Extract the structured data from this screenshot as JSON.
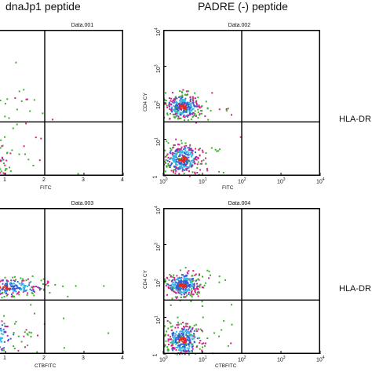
{
  "column_titles": [
    "dnaJp1 peptide",
    "PADRE (-) peptide"
  ],
  "row_labels": [
    "HLA-DR",
    "HLA-DR"
  ],
  "colors": {
    "frame": "#000000",
    "green": "#3fae2f",
    "magenta": "#d81e87",
    "blue": "#2f5fd8",
    "red": "#e0281f",
    "cyan": "#36b8e0"
  },
  "chart_data": [
    {
      "type": "scatter",
      "title": "Data.001",
      "xlabel": "FITC",
      "ylabel": "",
      "xscale": "log",
      "yscale": "log",
      "xlim": [
        1,
        10000
      ],
      "ylim": [
        1,
        10000
      ],
      "x_ticks": [
        "1",
        "2",
        "3",
        "4"
      ],
      "y_ticks": [],
      "quadrant_gate": {
        "x": 100,
        "y": 30
      },
      "populations": [
        {
          "x": 1.5,
          "y": 100,
          "n": 200,
          "sx": 0.35,
          "sy": 0.3
        },
        {
          "x": 2,
          "y": 3,
          "n": 260,
          "sx": 0.35,
          "sy": 0.3
        }
      ]
    },
    {
      "type": "scatter",
      "title": "Data.002",
      "xlabel": "FITC",
      "ylabel": "CD4 CY",
      "xscale": "log",
      "yscale": "log",
      "xlim": [
        1,
        10000
      ],
      "ylim": [
        1,
        10000
      ],
      "x_ticks": [
        "10",
        "10",
        "10",
        "10",
        "10"
      ],
      "x_tick_exp": [
        "0",
        "1",
        "2",
        "3",
        "4"
      ],
      "y_ticks": [
        "1",
        "10",
        "10",
        "10",
        "10"
      ],
      "y_tick_exp": [
        "",
        "1",
        "2",
        "3",
        "4"
      ],
      "quadrant_gate": {
        "x": 100,
        "y": 30
      },
      "populations": [
        {
          "x": 3,
          "y": 80,
          "n": 320,
          "sx": 0.22,
          "sy": 0.16
        },
        {
          "x": 3,
          "y": 3,
          "n": 320,
          "sx": 0.22,
          "sy": 0.2
        }
      ]
    },
    {
      "type": "scatter",
      "title": "Data.003",
      "xlabel": "CTBFITC",
      "ylabel": "",
      "xscale": "log",
      "yscale": "log",
      "xlim": [
        1,
        10000
      ],
      "ylim": [
        1,
        10000
      ],
      "x_ticks": [
        "1",
        "2",
        "3",
        "4"
      ],
      "y_ticks": [],
      "quadrant_gate": {
        "x": 100,
        "y": 30
      },
      "populations": [
        {
          "x": 8,
          "y": 70,
          "n": 320,
          "sx": 0.55,
          "sy": 0.12
        },
        {
          "x": 3,
          "y": 3,
          "n": 260,
          "sx": 0.4,
          "sy": 0.25
        }
      ]
    },
    {
      "type": "scatter",
      "title": "Data.004",
      "xlabel": "CTBFITC",
      "ylabel": "CD4 CY",
      "xscale": "log",
      "yscale": "log",
      "xlim": [
        1,
        10000
      ],
      "ylim": [
        1,
        10000
      ],
      "x_ticks": [
        "10",
        "10",
        "10",
        "10",
        "10"
      ],
      "x_tick_exp": [
        "0",
        "1",
        "2",
        "3",
        "4"
      ],
      "y_ticks": [
        "1",
        "10",
        "10",
        "10",
        "10"
      ],
      "y_tick_exp": [
        "",
        "1",
        "2",
        "3",
        "4"
      ],
      "quadrant_gate": {
        "x": 100,
        "y": 30
      },
      "populations": [
        {
          "x": 3,
          "y": 80,
          "n": 320,
          "sx": 0.22,
          "sy": 0.16
        },
        {
          "x": 3,
          "y": 2.5,
          "n": 320,
          "sx": 0.22,
          "sy": 0.22
        }
      ]
    }
  ]
}
